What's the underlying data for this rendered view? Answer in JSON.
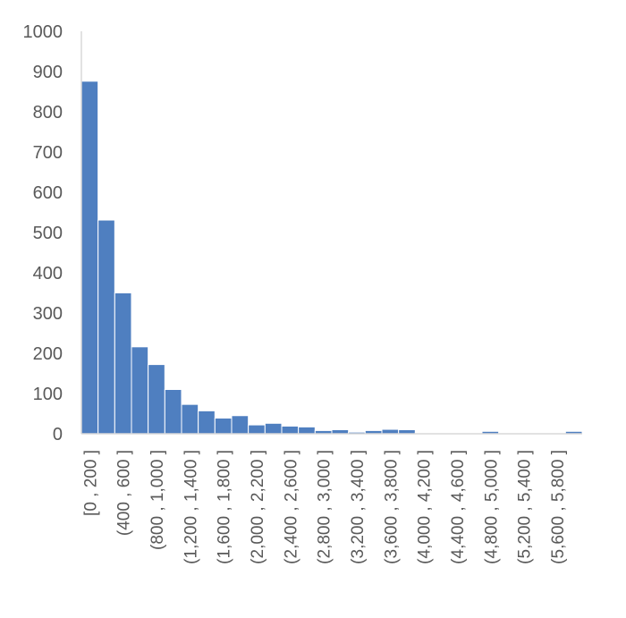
{
  "chart_data": {
    "type": "bar",
    "title": "",
    "xlabel": "",
    "ylabel": "",
    "ylim": [
      0,
      1000
    ],
    "yticks": [
      0,
      100,
      200,
      300,
      400,
      500,
      600,
      700,
      800,
      900,
      1000
    ],
    "grid": false,
    "legend": "none",
    "bar_color": "#4f7fc0",
    "bar_edge_color": "#ffffff",
    "axis_color": "#d9d9d9",
    "text_color": "#595959",
    "categories": [
      "[0 , 200 ]",
      "(200 , 400 ]",
      "(400 , 600 ]",
      "(600 , 800 ]",
      "(800 , 1,000 ]",
      "(1,000 , 1,200 ]",
      "(1,200 , 1,400 ]",
      "(1,400 , 1,600 ]",
      "(1,600 , 1,800 ]",
      "(1,800 , 2,000 ]",
      "(2,000 , 2,200 ]",
      "(2,200 , 2,400 ]",
      "(2,400 , 2,600 ]",
      "(2,600 , 2,800 ]",
      "(2,800 , 3,000 ]",
      "(3,000 , 3,200 ]",
      "(3,200 , 3,400 ]",
      "(3,400 , 3,600 ]",
      "(3,600 , 3,800 ]",
      "(3,800 , 4,000 ]",
      "(4,000 , 4,200 ]",
      "(4,200 , 4,400 ]",
      "(4,400 , 4,600 ]",
      "(4,600 , 4,800 ]",
      "(4,800 , 5,000 ]",
      "(5,000 , 5,200 ]",
      "(5,200 , 5,400 ]",
      "(5,400 , 5,600 ]",
      "(5,600 , 5,800 ]",
      "(5,800 , 6,000 ]"
    ],
    "visible_category_labels": [
      "[0 , 200 ]",
      "(400 , 600 ]",
      "(800 , 1,000 ]",
      "(1,200 , 1,400 ]",
      "(1,600 , 1,800 ]",
      "(2,000 , 2,200 ]",
      "(2,400 , 2,600 ]",
      "(2,800 , 3,000 ]",
      "(3,200 , 3,400 ]",
      "(3,600 , 3,800 ]",
      "(4,000 , 4,200 ]",
      "(4,400 , 4,600 ]",
      "(4,800 , 5,000 ]",
      "(5,200 , 5,400 ]",
      "(5,600 , 5,800 ]"
    ],
    "values": [
      876,
      531,
      350,
      216,
      172,
      110,
      73,
      57,
      39,
      45,
      22,
      26,
      19,
      17,
      8,
      10,
      4,
      8,
      11,
      10,
      2,
      2,
      2,
      2,
      6,
      2,
      2,
      2,
      2,
      6
    ]
  }
}
